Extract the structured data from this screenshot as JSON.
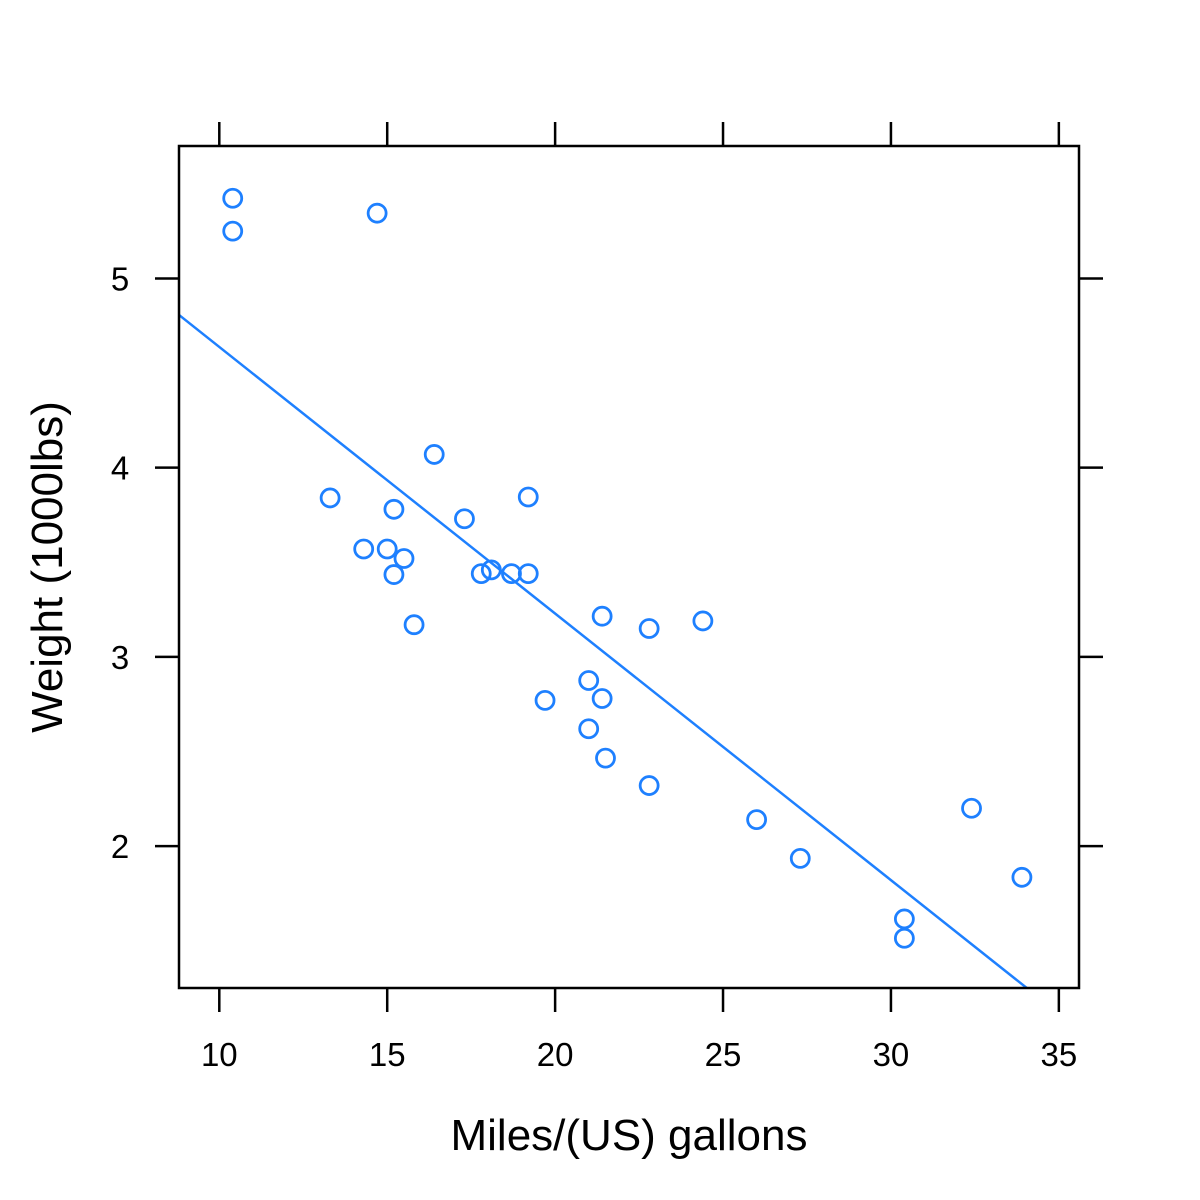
{
  "chart_data": {
    "type": "scatter",
    "xlabel": "Miles/(US) gallons",
    "ylabel": "Weight (1000lbs)",
    "xlim": [
      8.8,
      35.6
    ],
    "ylim": [
      1.25,
      5.7
    ],
    "xticks": [
      10,
      15,
      20,
      25,
      30,
      35
    ],
    "xtick_labels": [
      "10",
      "15",
      "20",
      "25",
      "30",
      "35"
    ],
    "yticks": [
      2,
      3,
      4,
      5
    ],
    "ytick_labels": [
      "2",
      "3",
      "4",
      "5"
    ],
    "grid": false,
    "point_color": "#1e80ff",
    "line_color": "#1e80ff",
    "x": [
      21.0,
      21.0,
      22.8,
      21.4,
      18.7,
      18.1,
      14.3,
      24.4,
      22.8,
      19.2,
      17.8,
      16.4,
      17.3,
      15.2,
      10.4,
      10.4,
      14.7,
      32.4,
      30.4,
      33.9,
      21.5,
      15.5,
      15.2,
      13.3,
      19.2,
      27.3,
      26.0,
      30.4,
      15.8,
      19.7,
      15.0,
      21.4
    ],
    "y": [
      2.62,
      2.875,
      2.32,
      3.215,
      3.44,
      3.46,
      3.57,
      3.19,
      3.15,
      3.44,
      3.44,
      4.07,
      3.73,
      3.78,
      5.25,
      5.424,
      5.345,
      2.2,
      1.615,
      1.835,
      2.465,
      3.52,
      3.435,
      3.84,
      3.845,
      1.935,
      2.14,
      1.513,
      3.17,
      2.77,
      3.57,
      2.78
    ],
    "fit_line": {
      "intercept": 6.047,
      "slope": -0.1409
    }
  }
}
